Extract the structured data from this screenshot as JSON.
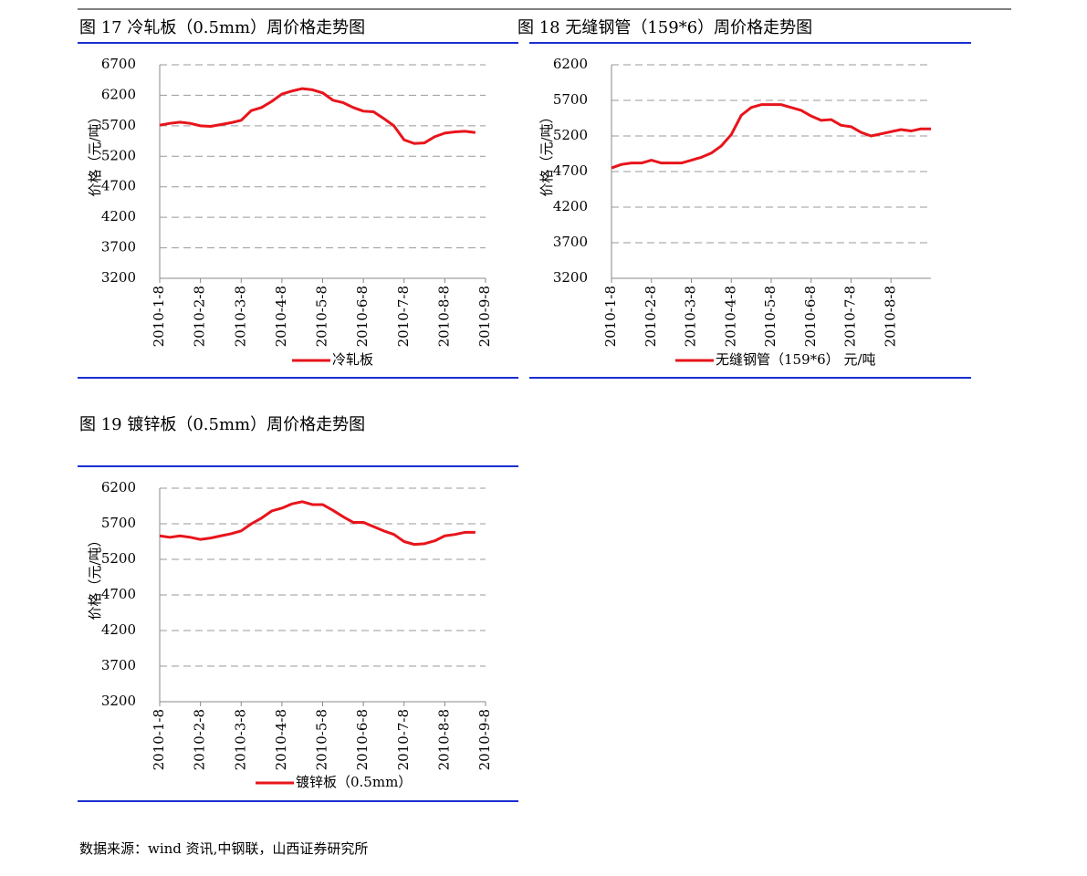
{
  "chart_data": [
    {
      "type": "line",
      "title": "图 17 冷轧板（0.5mm）周价格走势图",
      "y_label": "价格（元/吨）",
      "x": [
        0,
        0.25,
        0.5,
        0.75,
        1,
        1.25,
        1.5,
        1.75,
        2,
        2.25,
        2.5,
        2.75,
        3,
        3.25,
        3.5,
        3.75,
        4,
        4.25,
        4.5,
        4.75,
        5,
        5.25,
        5.5,
        5.75,
        6,
        6.25,
        6.5,
        6.75,
        7,
        7.25,
        7.5,
        7.75
      ],
      "series": [
        {
          "name": "冷轧板",
          "color": "#e8141b",
          "values": [
            5710,
            5740,
            5760,
            5740,
            5700,
            5690,
            5720,
            5750,
            5790,
            5950,
            6000,
            6100,
            6220,
            6270,
            6310,
            6290,
            6240,
            6120,
            6080,
            6000,
            5940,
            5930,
            5820,
            5700,
            5470,
            5410,
            5420,
            5520,
            5580,
            5600,
            5610,
            5590
          ]
        }
      ],
      "xlim": [
        0,
        8
      ],
      "xticks": [
        {
          "value": 0,
          "label": "2010-1-8"
        },
        {
          "value": 1,
          "label": "2010-2-8"
        },
        {
          "value": 2,
          "label": "2010-3-8"
        },
        {
          "value": 3,
          "label": "2010-4-8"
        },
        {
          "value": 4,
          "label": "2010-5-8"
        },
        {
          "value": 5,
          "label": "2010-6-8"
        },
        {
          "value": 6,
          "label": "2010-7-8"
        },
        {
          "value": 7,
          "label": "2010-8-8"
        },
        {
          "value": 8,
          "label": "2010-9-8"
        }
      ],
      "ylim": [
        3200,
        6700
      ],
      "yticks": [
        3200,
        3700,
        4200,
        4700,
        5200,
        5700,
        6200,
        6700
      ],
      "grid": true,
      "legend": "bottom"
    },
    {
      "type": "line",
      "title": "图 18 无缝钢管（159*6）周价格走势图",
      "y_label": "价格（元/吨）",
      "x": [
        0,
        0.25,
        0.5,
        0.75,
        1,
        1.25,
        1.5,
        1.75,
        2,
        2.25,
        2.5,
        2.75,
        3,
        3.25,
        3.5,
        3.75,
        4,
        4.25,
        4.5,
        4.75,
        5,
        5.25,
        5.5,
        5.75,
        6,
        6.25,
        6.5,
        6.75,
        7,
        7.25,
        7.5,
        7.75,
        8
      ],
      "series": [
        {
          "name": "无缝钢管（159*6） 元/吨",
          "color": "#e8141b",
          "values": [
            4750,
            4800,
            4820,
            4820,
            4860,
            4820,
            4820,
            4820,
            4860,
            4900,
            4960,
            5060,
            5220,
            5490,
            5600,
            5640,
            5640,
            5640,
            5600,
            5560,
            5480,
            5420,
            5430,
            5350,
            5330,
            5250,
            5200,
            5230,
            5260,
            5290,
            5270,
            5300,
            5300
          ]
        }
      ],
      "xlim": [
        0,
        8
      ],
      "xticks": [
        {
          "value": 0,
          "label": "2010-1-8"
        },
        {
          "value": 1,
          "label": "2010-2-8"
        },
        {
          "value": 2,
          "label": "2010-3-8"
        },
        {
          "value": 3,
          "label": "2010-4-8"
        },
        {
          "value": 4,
          "label": "2010-5-8"
        },
        {
          "value": 5,
          "label": "2010-6-8"
        },
        {
          "value": 6,
          "label": "2010-7-8"
        },
        {
          "value": 7,
          "label": "2010-8-8"
        }
      ],
      "ylim": [
        3200,
        6200
      ],
      "yticks": [
        3200,
        3700,
        4200,
        4700,
        5200,
        5700,
        6200
      ],
      "grid": true,
      "legend": "bottom"
    },
    {
      "type": "line",
      "title": "图 19 镀锌板（0.5mm）周价格走势图",
      "y_label": "价格（元/吨）",
      "x": [
        0,
        0.25,
        0.5,
        0.75,
        1,
        1.25,
        1.5,
        1.75,
        2,
        2.25,
        2.5,
        2.75,
        3,
        3.25,
        3.5,
        3.75,
        4,
        4.25,
        4.5,
        4.75,
        5,
        5.25,
        5.5,
        5.75,
        6,
        6.25,
        6.5,
        6.75,
        7,
        7.25,
        7.5,
        7.75
      ],
      "series": [
        {
          "name": "镀锌板（0.5mm）",
          "color": "#e8141b",
          "values": [
            5530,
            5510,
            5530,
            5510,
            5480,
            5500,
            5530,
            5560,
            5600,
            5700,
            5780,
            5880,
            5920,
            5980,
            6010,
            5970,
            5970,
            5890,
            5800,
            5720,
            5720,
            5660,
            5600,
            5550,
            5450,
            5410,
            5420,
            5460,
            5530,
            5550,
            5580,
            5580
          ]
        }
      ],
      "xlim": [
        0,
        8
      ],
      "xticks": [
        {
          "value": 0,
          "label": "2010-1-8"
        },
        {
          "value": 1,
          "label": "2010-2-8"
        },
        {
          "value": 2,
          "label": "2010-3-8"
        },
        {
          "value": 3,
          "label": "2010-4-8"
        },
        {
          "value": 4,
          "label": "2010-5-8"
        },
        {
          "value": 5,
          "label": "2010-6-8"
        },
        {
          "value": 6,
          "label": "2010-7-8"
        },
        {
          "value": 7,
          "label": "2010-8-8"
        },
        {
          "value": 8,
          "label": "2010-9-8"
        }
      ],
      "ylim": [
        3200,
        6200
      ],
      "yticks": [
        3200,
        3700,
        4200,
        4700,
        5200,
        5700,
        6200
      ],
      "grid": true,
      "legend": "bottom"
    }
  ],
  "source": "数据来源：wind 资讯,中钢联，山西证券研究所"
}
